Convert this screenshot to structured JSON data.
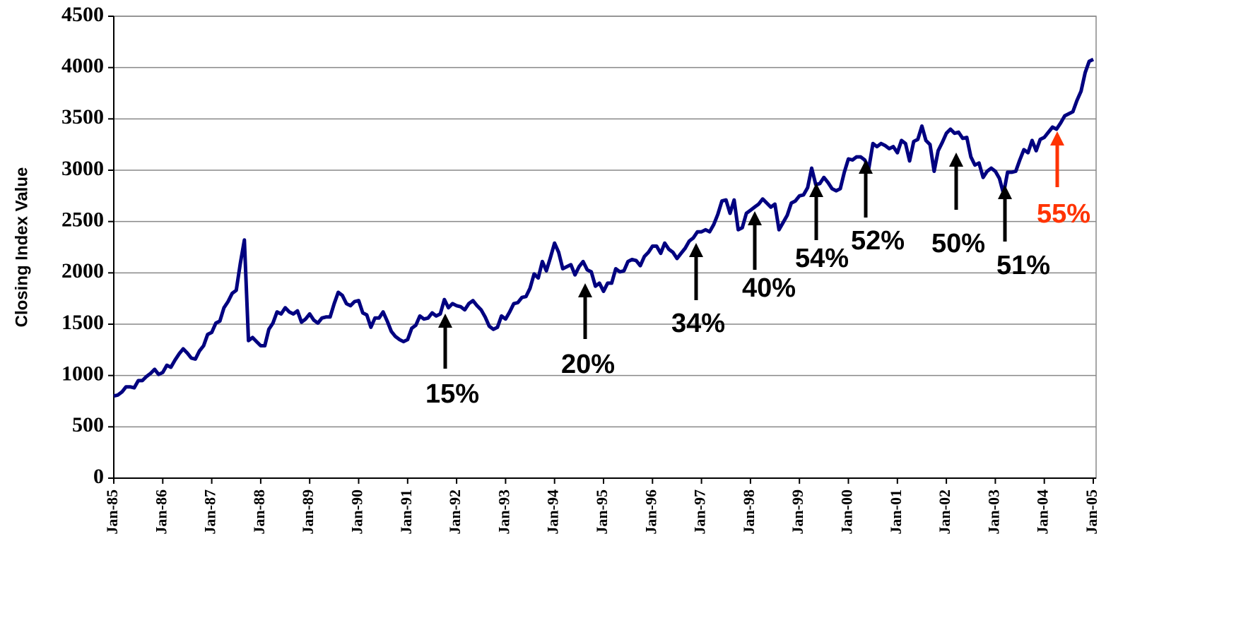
{
  "chart_data": {
    "type": "line",
    "y_label": "Closing Index Value",
    "categories": [
      "Jan-85",
      null,
      null,
      null,
      null,
      null,
      null,
      null,
      null,
      null,
      null,
      null,
      "Jan-86",
      null,
      null,
      null,
      null,
      null,
      null,
      null,
      null,
      null,
      null,
      null,
      "Jan-87",
      null,
      null,
      null,
      null,
      null,
      null,
      null,
      null,
      null,
      null,
      null,
      "Jan-88",
      null,
      null,
      null,
      null,
      null,
      null,
      null,
      null,
      null,
      null,
      null,
      "Jan-89",
      null,
      null,
      null,
      null,
      null,
      null,
      null,
      null,
      null,
      null,
      null,
      "Jan-90",
      null,
      null,
      null,
      null,
      null,
      null,
      null,
      null,
      null,
      null,
      null,
      "Jan-91",
      null,
      null,
      null,
      null,
      null,
      null,
      null,
      null,
      null,
      null,
      null,
      "Jan-92",
      null,
      null,
      null,
      null,
      null,
      null,
      null,
      null,
      null,
      null,
      null,
      "Jan-93",
      null,
      null,
      null,
      null,
      null,
      null,
      null,
      null,
      null,
      null,
      null,
      "Jan-94",
      null,
      null,
      null,
      null,
      null,
      null,
      null,
      null,
      null,
      null,
      null,
      "Jan-95",
      null,
      null,
      null,
      null,
      null,
      null,
      null,
      null,
      null,
      null,
      null,
      "Jan-96",
      null,
      null,
      null,
      null,
      null,
      null,
      null,
      null,
      null,
      null,
      null,
      "Jan-97",
      null,
      null,
      null,
      null,
      null,
      null,
      null,
      null,
      null,
      null,
      null,
      "Jan-98",
      null,
      null,
      null,
      null,
      null,
      null,
      null,
      null,
      null,
      null,
      null,
      "Jan-99",
      null,
      null,
      null,
      null,
      null,
      null,
      null,
      null,
      null,
      null,
      null,
      "Jan-00",
      null,
      null,
      null,
      null,
      null,
      null,
      null,
      null,
      null,
      null,
      null,
      "Jan-01",
      null,
      null,
      null,
      null,
      null,
      null,
      null,
      null,
      null,
      null,
      null,
      "Jan-02",
      null,
      null,
      null,
      null,
      null,
      null,
      null,
      null,
      null,
      null,
      null,
      "Jan-03",
      null,
      null,
      null,
      null,
      null,
      null,
      null,
      null,
      null,
      null,
      null,
      "Jan-04",
      null,
      null,
      null,
      null,
      null,
      null,
      null,
      null,
      null,
      null,
      null,
      "Jan-05"
    ],
    "series": [
      {
        "color": "#000080",
        "values": [
          800,
          810,
          840,
          890,
          890,
          880,
          950,
          950,
          990,
          1020,
          1060,
          1010,
          1030,
          1100,
          1080,
          1150,
          1210,
          1260,
          1220,
          1170,
          1160,
          1240,
          1290,
          1400,
          1420,
          1510,
          1530,
          1660,
          1720,
          1800,
          1830,
          2090,
          2320,
          1340,
          1370,
          1330,
          1290,
          1290,
          1450,
          1510,
          1620,
          1600,
          1660,
          1620,
          1600,
          1630,
          1520,
          1550,
          1600,
          1540,
          1510,
          1560,
          1570,
          1570,
          1700,
          1810,
          1780,
          1700,
          1680,
          1720,
          1730,
          1610,
          1590,
          1470,
          1560,
          1560,
          1620,
          1530,
          1430,
          1380,
          1350,
          1330,
          1350,
          1460,
          1490,
          1580,
          1550,
          1560,
          1610,
          1580,
          1600,
          1740,
          1660,
          1700,
          1680,
          1670,
          1640,
          1700,
          1730,
          1680,
          1640,
          1570,
          1480,
          1450,
          1470,
          1580,
          1550,
          1620,
          1700,
          1710,
          1760,
          1770,
          1850,
          1990,
          1950,
          2110,
          2020,
          2150,
          2290,
          2200,
          2040,
          2060,
          2080,
          1980,
          2060,
          2110,
          2030,
          2010,
          1870,
          1900,
          1820,
          1900,
          1900,
          2040,
          2010,
          2020,
          2110,
          2130,
          2120,
          2070,
          2160,
          2200,
          2260,
          2260,
          2190,
          2290,
          2230,
          2200,
          2140,
          2190,
          2240,
          2310,
          2340,
          2400,
          2400,
          2420,
          2400,
          2470,
          2570,
          2700,
          2710,
          2580,
          2710,
          2420,
          2440,
          2580,
          2610,
          2640,
          2670,
          2720,
          2680,
          2640,
          2670,
          2420,
          2490,
          2560,
          2680,
          2700,
          2750,
          2760,
          2830,
          3020,
          2860,
          2870,
          2930,
          2880,
          2820,
          2800,
          2820,
          2980,
          3110,
          3100,
          3130,
          3130,
          3100,
          3020,
          3260,
          3230,
          3260,
          3240,
          3210,
          3230,
          3170,
          3290,
          3260,
          3090,
          3280,
          3300,
          3430,
          3290,
          3250,
          2990,
          3190,
          3270,
          3360,
          3400,
          3360,
          3370,
          3310,
          3320,
          3130,
          3050,
          3070,
          2930,
          2990,
          3020,
          2990,
          2920,
          2770,
          2980,
          2980,
          2990,
          3100,
          3200,
          3170,
          3290,
          3190,
          3300,
          3320,
          3370,
          3420,
          3400,
          3460,
          3530,
          3550,
          3570,
          3680,
          3770,
          3950,
          4060,
          4080
        ]
      }
    ],
    "ylim": [
      0,
      4500
    ],
    "yticks": [
      0,
      500,
      1000,
      1500,
      2000,
      2500,
      3000,
      3500,
      4000,
      4500
    ],
    "grid": true,
    "annotations": [
      {
        "text": "15%"
      },
      {
        "text": "20%"
      },
      {
        "text": "34%"
      },
      {
        "text": "40%"
      },
      {
        "text": "54%"
      },
      {
        "text": "52%"
      },
      {
        "text": "50%"
      },
      {
        "text": "51%"
      },
      {
        "text": "55%",
        "color": "#ff3300"
      }
    ]
  }
}
